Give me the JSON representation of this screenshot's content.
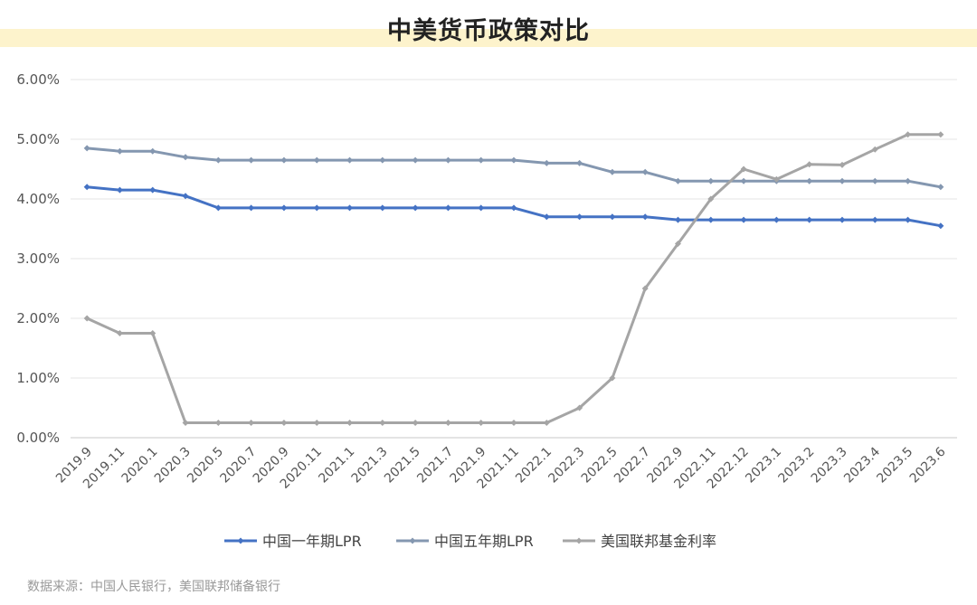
{
  "title": "中美货币政策对比",
  "source": "数据来源：中国人民银行，美国联邦储备银行",
  "chart_data": {
    "type": "line",
    "title": "中美货币政策对比",
    "xlabel": "",
    "ylabel": "",
    "ylim": [
      0,
      6
    ],
    "yticks": [
      "0.00%",
      "1.00%",
      "2.00%",
      "3.00%",
      "4.00%",
      "5.00%",
      "6.00%"
    ],
    "grid": true,
    "legend_position": "bottom",
    "categories": [
      "2019.9",
      "2019.11",
      "2020.1",
      "2020.3",
      "2020.5",
      "2020.7",
      "2020.9",
      "2020.11",
      "2021.1",
      "2021.3",
      "2021.5",
      "2021.7",
      "2021.9",
      "2021.11",
      "2022.1",
      "2022.3",
      "2022.5",
      "2022.7",
      "2022.9",
      "2022.11",
      "2022.12",
      "2023.1",
      "2023.2",
      "2023.3",
      "2023.4",
      "2023.5",
      "2023.6"
    ],
    "series": [
      {
        "name": "中国一年期LPR",
        "color": "#4472c4",
        "values": [
          4.2,
          4.15,
          4.15,
          4.05,
          3.85,
          3.85,
          3.85,
          3.85,
          3.85,
          3.85,
          3.85,
          3.85,
          3.85,
          3.85,
          3.7,
          3.7,
          3.7,
          3.7,
          3.65,
          3.65,
          3.65,
          3.65,
          3.65,
          3.65,
          3.65,
          3.65,
          3.55
        ]
      },
      {
        "name": "中国五年期LPR",
        "color": "#8497b0",
        "values": [
          4.85,
          4.8,
          4.8,
          4.7,
          4.65,
          4.65,
          4.65,
          4.65,
          4.65,
          4.65,
          4.65,
          4.65,
          4.65,
          4.65,
          4.6,
          4.6,
          4.45,
          4.45,
          4.3,
          4.3,
          4.3,
          4.3,
          4.3,
          4.3,
          4.3,
          4.3,
          4.2
        ]
      },
      {
        "name": "美国联邦基金利率",
        "color": "#a5a5a5",
        "values": [
          2.0,
          1.75,
          1.75,
          0.25,
          0.25,
          0.25,
          0.25,
          0.25,
          0.25,
          0.25,
          0.25,
          0.25,
          0.25,
          0.25,
          0.25,
          0.5,
          1.0,
          2.5,
          3.25,
          4.0,
          4.5,
          4.33,
          4.58,
          4.57,
          4.83,
          5.08,
          5.08
        ]
      }
    ]
  }
}
